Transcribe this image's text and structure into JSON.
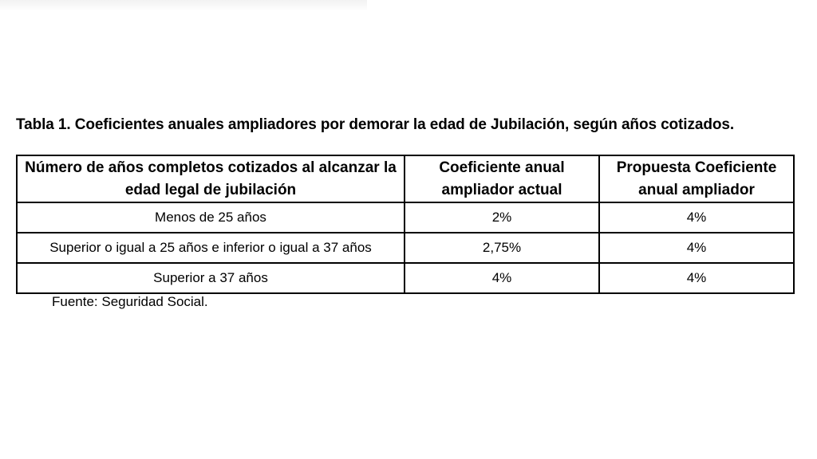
{
  "table": {
    "title": "Tabla 1. Coeficientes anuales ampliadores por demorar la edad de Jubilación, según años cotizados.",
    "headers": [
      "Número de años completos cotizados al alcanzar la edad legal de jubilación",
      "Coeficiente anual ampliador actual",
      "Propuesta Coeficiente anual ampliador"
    ],
    "rows": [
      [
        "Menos de 25 años",
        "2%",
        "4%"
      ],
      [
        "Superior o igual a 25 años e inferior o igual a 37 años",
        "2,75%",
        "4%"
      ],
      [
        "Superior a 37 años",
        "4%",
        "4%"
      ]
    ]
  },
  "source": "Fuente: Seguridad Social."
}
